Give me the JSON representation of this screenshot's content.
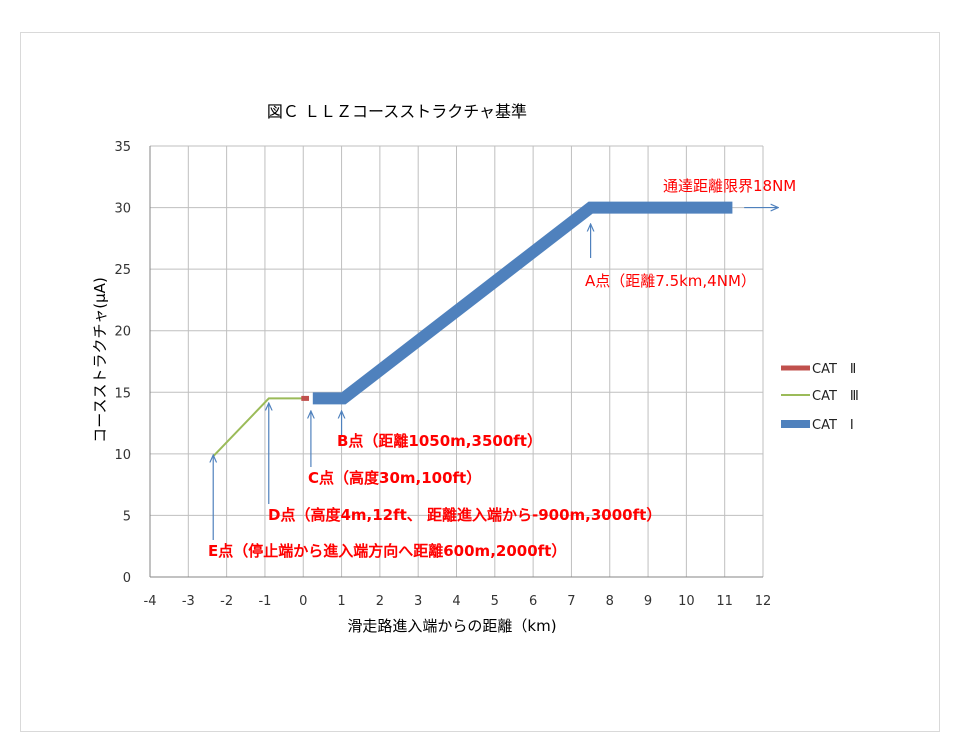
{
  "chart_data": {
    "type": "line",
    "title": "図Ｃ ＬＬＺコースストラクチャ基準",
    "xlabel": "滑走路進入端からの距離（km)",
    "ylabel": "コースストラクチャ(μA)",
    "xlim": [
      -4,
      12
    ],
    "ylim": [
      0,
      35
    ],
    "xticks": [
      "-4",
      "-3",
      "-2",
      "-1",
      "0",
      "1",
      "2",
      "3",
      "4",
      "5",
      "6",
      "7",
      "8",
      "9",
      "10",
      "11",
      "12"
    ],
    "yticks": [
      "0",
      "5",
      "10",
      "15",
      "20",
      "25",
      "30",
      "35"
    ],
    "grid": true,
    "legend_position": "right",
    "series": [
      {
        "name": "CAT　Ⅱ",
        "color": "#c0504d",
        "width": 5,
        "points": [
          [
            -0.05,
            14.5
          ],
          [
            0.15,
            14.5
          ]
        ]
      },
      {
        "name": "CAT　Ⅲ",
        "color": "#9bbb59",
        "width": 2,
        "points": [
          [
            -2.35,
            9.8
          ],
          [
            -0.9,
            14.5
          ],
          [
            0.05,
            14.5
          ]
        ]
      },
      {
        "name": "CAT　Ⅰ",
        "color": "#4f81bd",
        "width": 12,
        "points": [
          [
            0.25,
            14.5
          ],
          [
            1.05,
            14.5
          ],
          [
            7.5,
            30
          ],
          [
            11.2,
            30
          ]
        ]
      }
    ],
    "annotations": [
      {
        "text": "通達距離限界18NM",
        "style": "normal",
        "arrow": "right",
        "ax": 11.3,
        "ay": 30
      },
      {
        "text": "A点（距離7.5km,4NM）",
        "style": "normal",
        "arrow": "up",
        "ax": 7.5,
        "ay": 29
      },
      {
        "text": "B点（距離1050m,3500ft）",
        "style": "bold",
        "arrow": "up",
        "ax": 1.0,
        "ay": 13.5
      },
      {
        "text": "C点（高度30m,100ft）",
        "style": "bold",
        "arrow": "up",
        "ax": 0.2,
        "ay": 13.5
      },
      {
        "text": "D点（高度4m,12ft、 距離進入端から-900m,3000ft）",
        "style": "bold",
        "arrow": "up",
        "ax": -0.9,
        "ay": 14.0
      },
      {
        "text": "E点（停止端から進入端方向へ距離600m,2000ft）",
        "style": "bold",
        "arrow": "up",
        "ax": -2.35,
        "ay": 9.9
      }
    ]
  },
  "colors": {
    "grid": "#bfbfbf",
    "axis": "#868686",
    "annotation": "#ff0000",
    "arrow": "#4f81bd"
  }
}
